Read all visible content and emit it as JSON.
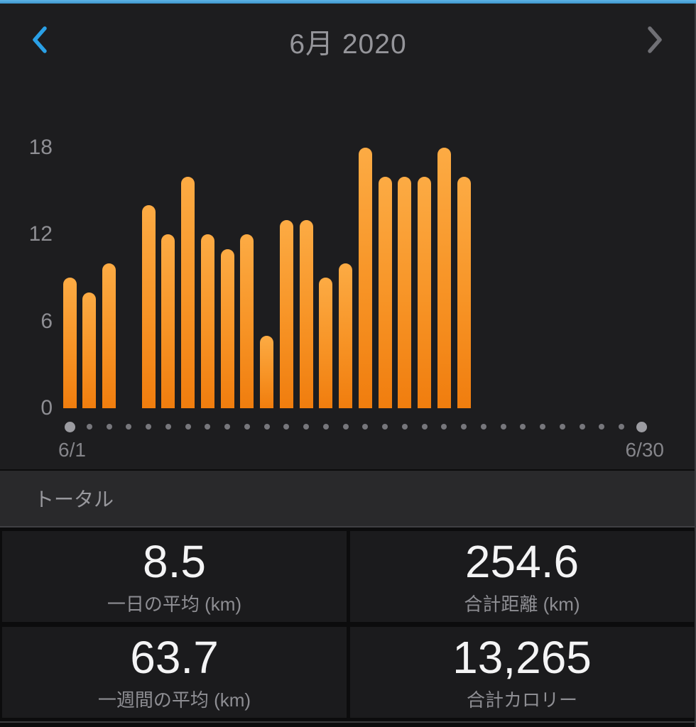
{
  "header": {
    "title": "6月 2020",
    "prev_icon": "chevron-left",
    "next_icon": "chevron-right"
  },
  "chart_data": {
    "type": "bar",
    "title": "6月 2020",
    "ylabel": "km",
    "xlabel": "",
    "x_start_label": "6/1",
    "x_end_label": "6/30",
    "y_ticks": [
      0,
      6,
      12,
      18
    ],
    "ylim": [
      0,
      19.5
    ],
    "categories": [
      "6/1",
      "6/2",
      "6/3",
      "6/4",
      "6/5",
      "6/6",
      "6/7",
      "6/8",
      "6/9",
      "6/10",
      "6/11",
      "6/12",
      "6/13",
      "6/14",
      "6/15",
      "6/16",
      "6/17",
      "6/18",
      "6/19",
      "6/20",
      "6/21",
      "6/22",
      "6/23",
      "6/24",
      "6/25",
      "6/26",
      "6/27",
      "6/28",
      "6/29",
      "6/30"
    ],
    "values": [
      9,
      8,
      10,
      0,
      14,
      12,
      16,
      12,
      11,
      12,
      5,
      13,
      13,
      9,
      10,
      18,
      16,
      16,
      16,
      18,
      16,
      0,
      0,
      0,
      0,
      0,
      0,
      0,
      0,
      0
    ],
    "grid": false,
    "legend": false
  },
  "total_section": {
    "label": "トータル"
  },
  "stats": [
    {
      "value": "8.5",
      "label": "一日の平均 (km)"
    },
    {
      "value": "254.6",
      "label": "合計距離 (km)"
    },
    {
      "value": "63.7",
      "label": "一週間の平均 (km)"
    },
    {
      "value": "13,265",
      "label": "合計カロリー"
    }
  ],
  "colors": {
    "accent_blue": "#4aa3da",
    "chevron_blue": "#2aa0e6",
    "chevron_gray": "#707075",
    "bar_orange_top": "#fcab44",
    "bar_orange_bottom": "#f07d0e",
    "text_gray": "#8e8e93"
  }
}
